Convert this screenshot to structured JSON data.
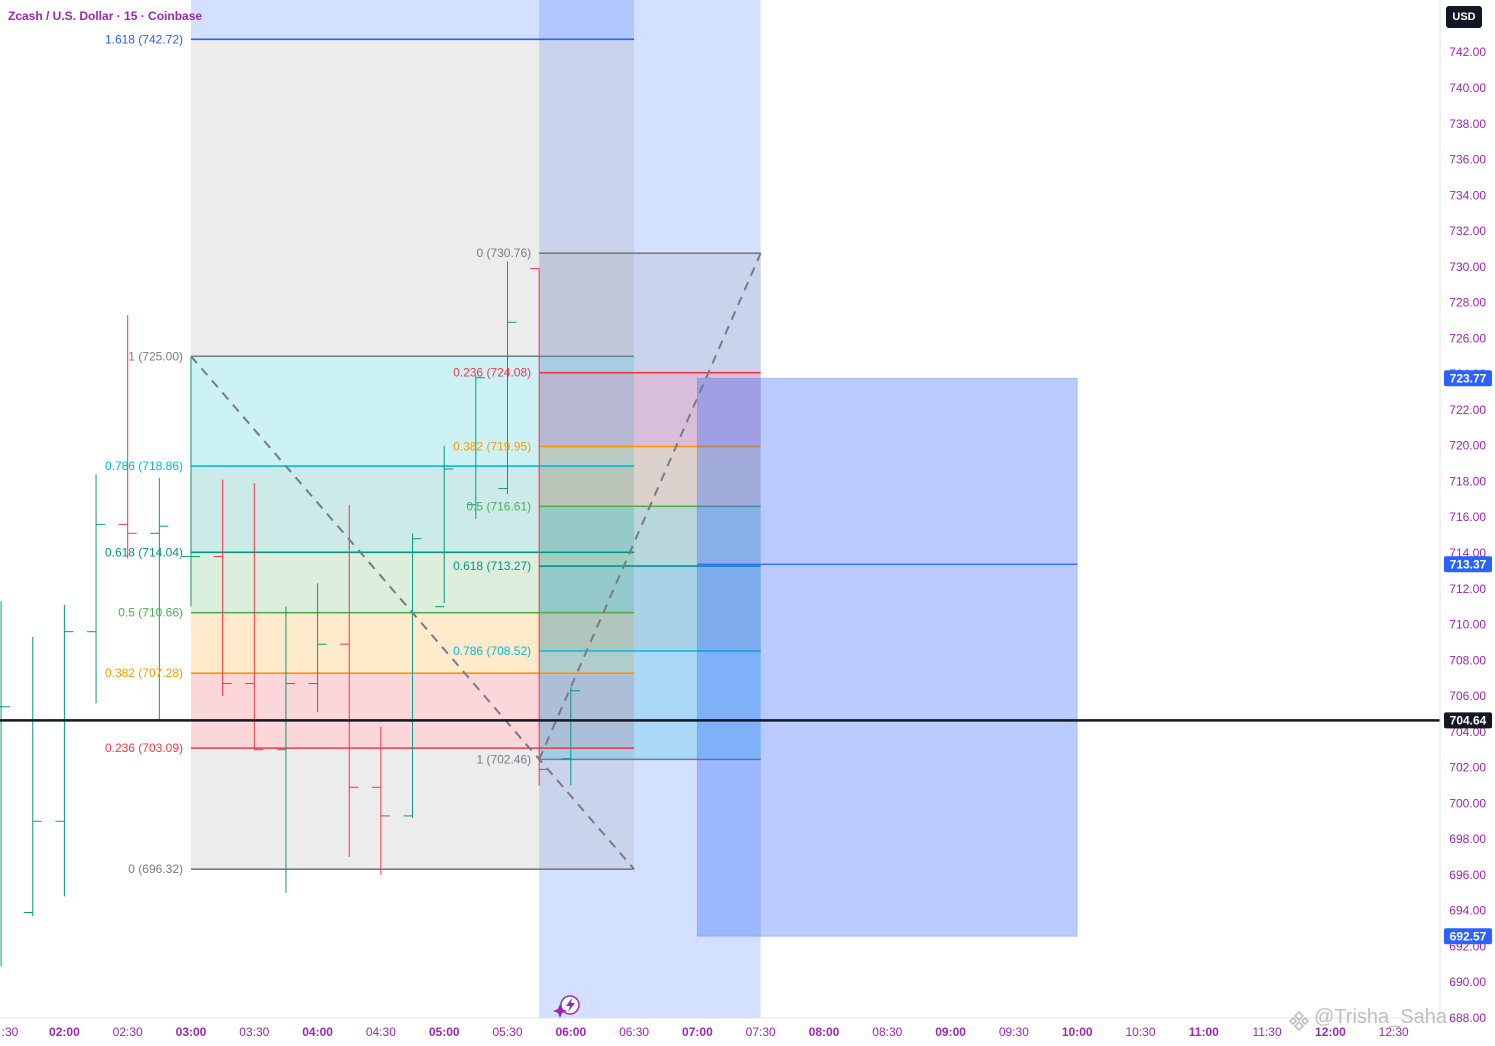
{
  "header": {
    "title": "Zcash / U.S. Dollar · 15 · Coinbase",
    "currency": "USD"
  },
  "price_scale": {
    "ticks": [
      "742.00",
      "740.00",
      "738.00",
      "736.00",
      "734.00",
      "732.00",
      "730.00",
      "728.00",
      "726.00",
      "724.00",
      "722.00",
      "720.00",
      "718.00",
      "716.00",
      "714.00",
      "712.00",
      "710.00",
      "708.00",
      "706.00",
      "704.00",
      "702.00",
      "700.00",
      "698.00",
      "696.00",
      "694.00",
      "692.00",
      "690.00",
      "688.00"
    ],
    "badges": [
      {
        "value": 723.77,
        "label": "723.77",
        "color": "#2962ff"
      },
      {
        "value": 713.37,
        "label": "713.37",
        "color": "#2962ff"
      },
      {
        "value": 704.64,
        "label": "704.64",
        "color": "#131722"
      },
      {
        "value": 692.57,
        "label": "692.57",
        "color": "#2962ff"
      }
    ]
  },
  "time_axis": {
    "ticks": [
      ":30",
      "02:00",
      "02:30",
      "03:00",
      "03:30",
      "04:00",
      "04:30",
      "05:00",
      "05:30",
      "06:00",
      "06:30",
      "07:00",
      "07:30",
      "08:00",
      "08:30",
      "09:00",
      "09:30",
      "10:00",
      "10:30",
      "11:00",
      "11:30",
      "12:00",
      "12:30"
    ],
    "bold_ticks": [
      "02:00",
      "03:00",
      "04:00",
      "05:00",
      "06:00",
      "07:00",
      "08:00",
      "09:00",
      "10:00",
      "11:00",
      "12:00"
    ]
  },
  "chart_data": {
    "type": "ohlc",
    "timeframe": "15",
    "current_price": 704.64,
    "price_range": [
      687.0,
      742.5
    ],
    "candles": [
      {
        "t": "01:30",
        "o": 705.4,
        "h": 711.3,
        "l": 690.9,
        "c": 705.4
      },
      {
        "t": "01:45",
        "o": 693.9,
        "h": 709.3,
        "l": 693.7,
        "c": 699.0
      },
      {
        "t": "02:00",
        "o": 699.0,
        "h": 711.1,
        "l": 694.8,
        "c": 709.6
      },
      {
        "t": "02:15",
        "o": 709.6,
        "h": 718.4,
        "l": 705.6,
        "c": 715.6
      },
      {
        "t": "02:30",
        "o": 715.6,
        "h": 727.3,
        "l": 713.7,
        "c": 715.1
      },
      {
        "t": "02:45",
        "o": 715.1,
        "h": 718.2,
        "l": 704.7,
        "c": 715.5
      },
      {
        "t": "03:00",
        "o": 713.8,
        "h": 725.0,
        "l": 711.0,
        "c": 713.8
      },
      {
        "t": "03:15",
        "o": 713.8,
        "h": 718.1,
        "l": 706.0,
        "c": 706.7
      },
      {
        "t": "03:30",
        "o": 706.7,
        "h": 717.9,
        "l": 703.0,
        "c": 703.0
      },
      {
        "t": "03:45",
        "o": 703.0,
        "h": 711.0,
        "l": 695.0,
        "c": 706.7
      },
      {
        "t": "04:00",
        "o": 706.7,
        "h": 712.3,
        "l": 705.1,
        "c": 708.9
      },
      {
        "t": "04:15",
        "o": 708.9,
        "h": 716.7,
        "l": 697.0,
        "c": 700.9
      },
      {
        "t": "04:30",
        "o": 700.9,
        "h": 704.3,
        "l": 696.0,
        "c": 699.3
      },
      {
        "t": "04:45",
        "o": 699.3,
        "h": 715.1,
        "l": 699.2,
        "c": 714.8
      },
      {
        "t": "05:00",
        "o": 711.0,
        "h": 720.0,
        "l": 711.2,
        "c": 718.7
      },
      {
        "t": "05:15",
        "o": 716.7,
        "h": 723.9,
        "l": 715.9,
        "c": 723.8
      },
      {
        "t": "05:30",
        "o": 717.6,
        "h": 730.3,
        "l": 717.3,
        "c": 726.9
      },
      {
        "t": "05:45",
        "o": 729.9,
        "h": 729.9,
        "l": 701.0,
        "c": 701.9
      },
      {
        "t": "06:00",
        "o": 702.5,
        "h": 706.5,
        "l": 701.0,
        "c": 706.3
      }
    ],
    "fib_retracements": [
      {
        "name": "fib-1",
        "time_range": [
          "03:00",
          "06:30"
        ],
        "levels": [
          {
            "ratio": "1.618",
            "price": 742.72,
            "label": "1.618 (742.72)",
            "color": "#2962ff"
          },
          {
            "ratio": "1",
            "price": 725.0,
            "label": "1 (725.00)",
            "color": "#787b86"
          },
          {
            "ratio": "0.786",
            "price": 718.86,
            "label": "0.786 (718.86)",
            "color": "#00bcd4"
          },
          {
            "ratio": "0.618",
            "price": 714.04,
            "label": "0.618 (714.04)",
            "color": "#009688"
          },
          {
            "ratio": "0.5",
            "price": 710.66,
            "label": "0.5 (710.66)",
            "color": "#4caf50"
          },
          {
            "ratio": "0.382",
            "price": 707.28,
            "label": "0.382 (707.28)",
            "color": "#ff9800"
          },
          {
            "ratio": "0.236",
            "price": 703.09,
            "label": "0.236 (703.09)",
            "color": "#f23645"
          },
          {
            "ratio": "0",
            "price": 696.32,
            "label": "0 (696.32)",
            "color": "#787b86"
          }
        ],
        "trend_line": {
          "from": [
            "03:00",
            725.0
          ],
          "to": [
            "06:30",
            696.32
          ]
        }
      },
      {
        "name": "fib-2",
        "time_range": [
          "05:45",
          "07:30"
        ],
        "levels": [
          {
            "ratio": "0",
            "price": 730.76,
            "label": "0 (730.76)",
            "color": "#787b86"
          },
          {
            "ratio": "0.236",
            "price": 724.08,
            "label": "0.236 (724.08)",
            "color": "#f23645"
          },
          {
            "ratio": "0.382",
            "price": 719.95,
            "label": "0.382 (719.95)",
            "color": "#ff9800"
          },
          {
            "ratio": "0.5",
            "price": 716.61,
            "label": "0.5 (716.61)",
            "color": "#4caf50"
          },
          {
            "ratio": "0.618",
            "price": 713.27,
            "label": "0.618 (713.27)",
            "color": "#009688"
          },
          {
            "ratio": "0.786",
            "price": 708.52,
            "label": "0.786 (708.52)",
            "color": "#00bcd4"
          },
          {
            "ratio": "1",
            "price": 702.46,
            "label": "1 (702.46)",
            "color": "#787b86"
          }
        ],
        "trend_line": {
          "from": [
            "05:45",
            702.46
          ],
          "to": [
            "07:30",
            730.76
          ]
        }
      }
    ],
    "date_ranges": [
      {
        "name": "range-1",
        "time_range": [
          "03:00",
          "06:30"
        ],
        "price_range": [
          742.72,
          "top"
        ],
        "color": "#2962ff"
      },
      {
        "name": "range-2",
        "time_range": [
          "05:45",
          "07:30"
        ],
        "price_range": [
          "bottom",
          "top"
        ],
        "color": "#2962ff"
      }
    ],
    "price_box": {
      "time_range": [
        "07:00",
        "10:00"
      ],
      "price_range": [
        692.57,
        723.77
      ],
      "mid_line": 713.37,
      "color": "#2962ff"
    },
    "grid": false
  },
  "footer": {
    "watermark": "@Trisha_Saha"
  }
}
